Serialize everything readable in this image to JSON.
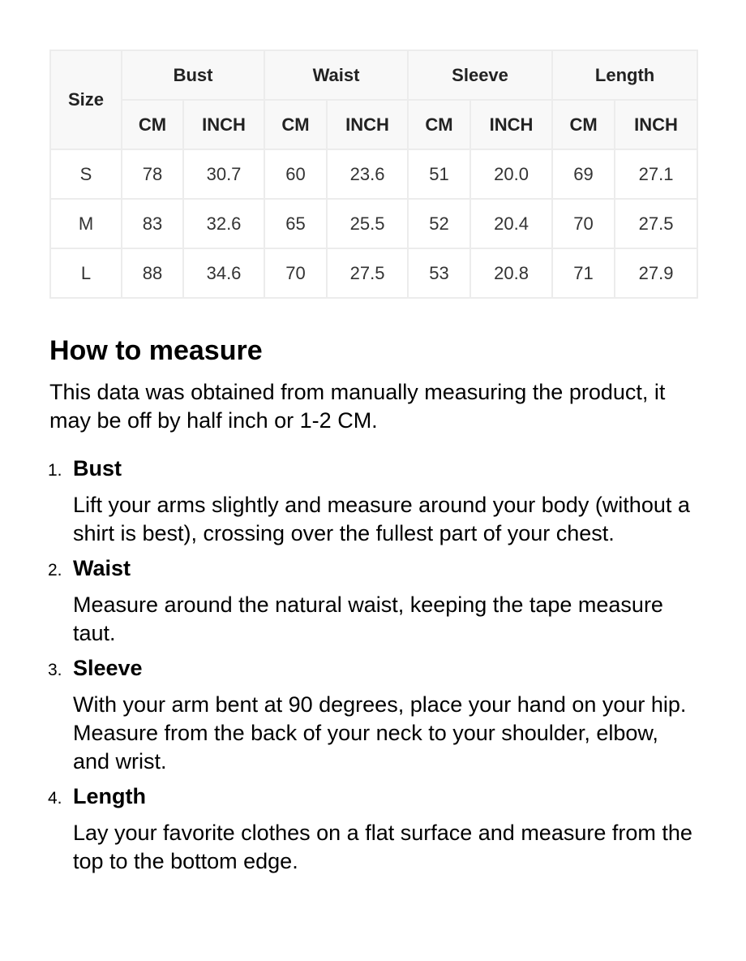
{
  "table": {
    "size_header": "Size",
    "groups": [
      "Bust",
      "Waist",
      "Sleeve",
      "Length"
    ],
    "units": [
      "CM",
      "INCH"
    ],
    "rows": [
      [
        "S",
        "78",
        "30.7",
        "60",
        "23.6",
        "51",
        "20.0",
        "69",
        "27.1"
      ],
      [
        "M",
        "83",
        "32.6",
        "65",
        "25.5",
        "52",
        "20.4",
        "70",
        "27.5"
      ],
      [
        "L",
        "88",
        "34.6",
        "70",
        "27.5",
        "53",
        "20.8",
        "71",
        "27.9"
      ]
    ]
  },
  "guide": {
    "heading": "How to measure",
    "intro": "This data was obtained from manually measuring the product, it may be off by half inch or 1-2 CM.",
    "items": [
      {
        "num": "1.",
        "title": "Bust",
        "desc": "Lift your arms slightly and measure around your body (without a shirt is best), crossing over the fullest part of your chest."
      },
      {
        "num": "2.",
        "title": "Waist",
        "desc": "Measure around the natural waist, keeping the tape measure taut."
      },
      {
        "num": "3.",
        "title": "Sleeve",
        "desc": "With your arm bent at 90 degrees, place your hand on your hip. Measure from the back of your neck to your shoulder, elbow, and wrist."
      },
      {
        "num": "4.",
        "title": "Length",
        "desc": "Lay your favorite clothes on a flat surface and measure from the top to the bottom edge."
      }
    ]
  }
}
